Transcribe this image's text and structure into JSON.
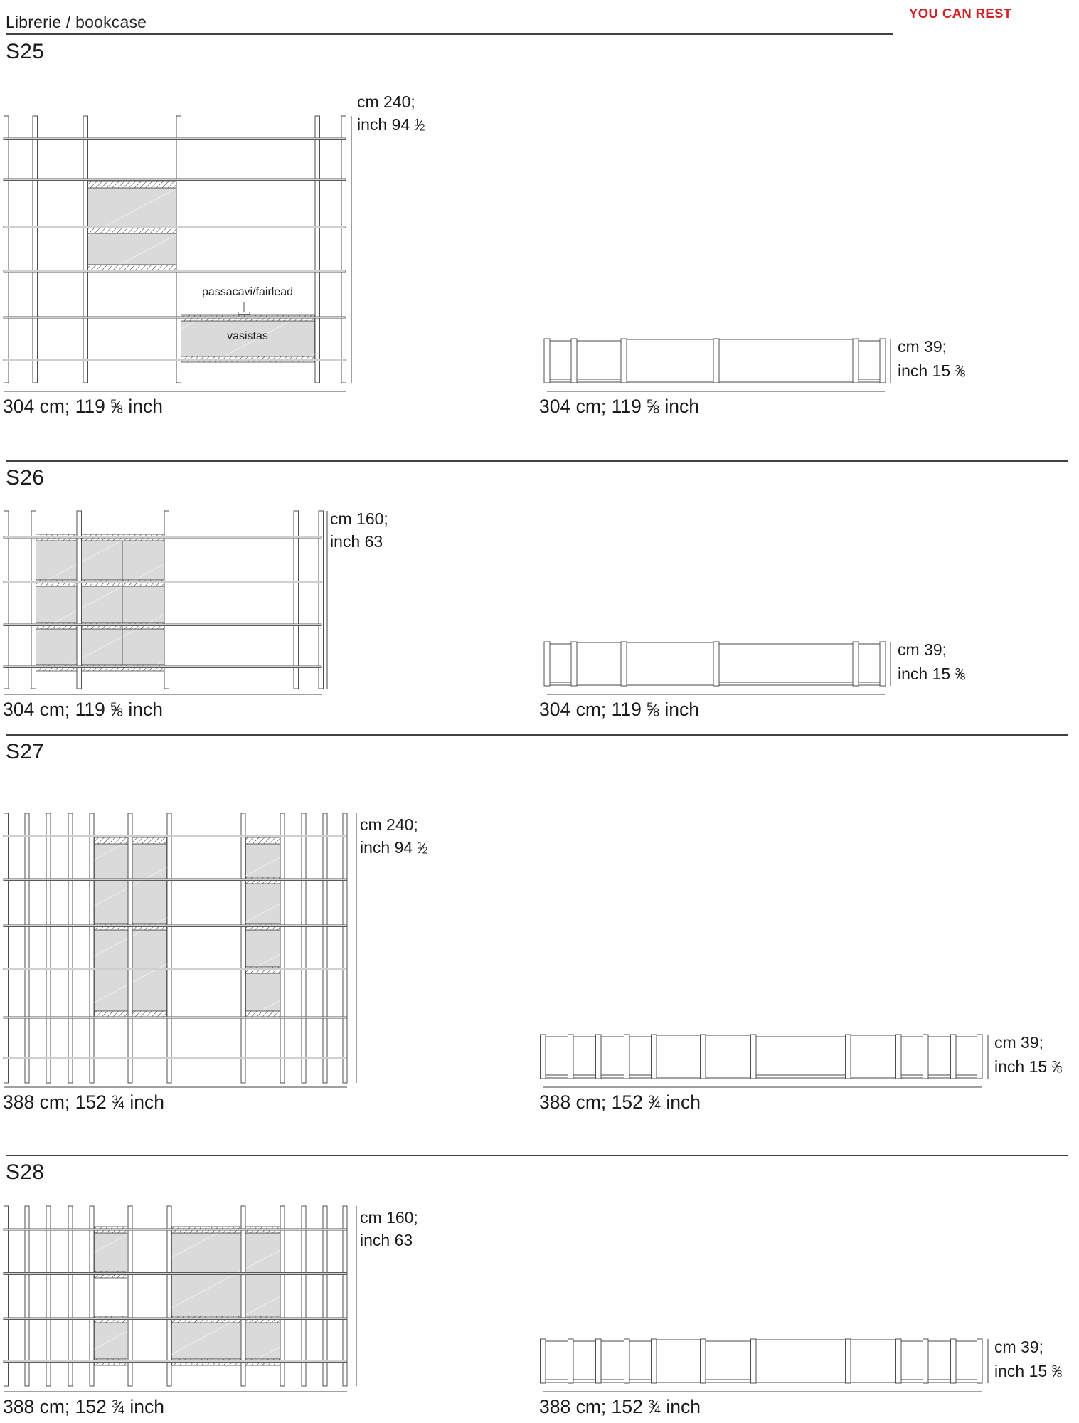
{
  "header": {
    "title_main": "Librerie",
    "title_sep": " / ",
    "title_sub": "bookcase",
    "brand": "YOU CAN REST"
  },
  "colors": {
    "accent_red": "#cf2026",
    "line_dark": "#414141",
    "drawing_line": "#4a4a4a",
    "cabinet_fill": "#dadada",
    "shelf_fill": "#cfcfcf",
    "text": "#1b1b1b"
  },
  "sections": [
    {
      "id": "S25",
      "title": "S25",
      "height_cm": "cm 240;",
      "height_in": {
        "t": "inch 94",
        "n": "1",
        "d": "2"
      },
      "width_label": {
        "t": "304 cm;",
        "t2": "119",
        "n": "5",
        "d": "8",
        "t3": "inch"
      },
      "depth_cm": "cm 39;",
      "depth_in": {
        "t": "inch 15",
        "n": "3",
        "d": "8"
      },
      "annotations": {
        "fairlead": "passacavi/fairlead",
        "vasistas": "vasistas"
      }
    },
    {
      "id": "S26",
      "title": "S26",
      "height_cm": "cm 160;",
      "height_in": {
        "t": "inch 63"
      },
      "width_label": {
        "t": "304 cm;",
        "t2": "119",
        "n": "5",
        "d": "8",
        "t3": "inch"
      },
      "depth_cm": "cm 39;",
      "depth_in": {
        "t": "inch 15",
        "n": "3",
        "d": "8"
      }
    },
    {
      "id": "S27",
      "title": "S27",
      "height_cm": "cm 240;",
      "height_in": {
        "t": "inch 94",
        "n": "1",
        "d": "2"
      },
      "width_label": {
        "t": "388 cm;",
        "t2": "152",
        "n": "3",
        "d": "4",
        "t3": "inch"
      },
      "depth_cm": "cm 39;",
      "depth_in": {
        "t": "inch 15",
        "n": "3",
        "d": "8"
      }
    },
    {
      "id": "S28",
      "title": "S28",
      "height_cm": "cm 160;",
      "height_in": {
        "t": "inch 63"
      },
      "width_label": {
        "t": "388 cm;",
        "t2": "152",
        "n": "3",
        "d": "4",
        "t3": "inch"
      },
      "depth_cm": "cm 39;",
      "depth_in": {
        "t": "inch 15",
        "n": "3",
        "d": "8"
      }
    }
  ]
}
